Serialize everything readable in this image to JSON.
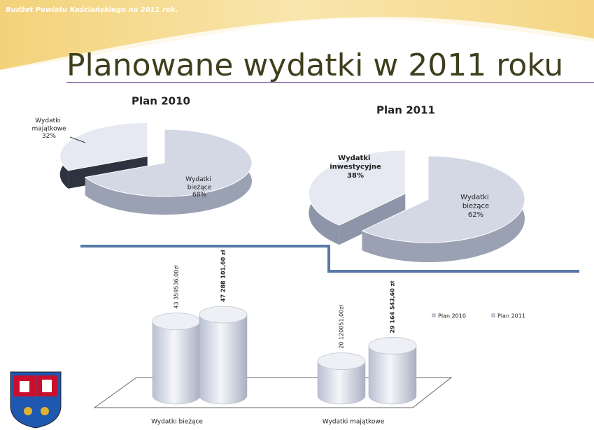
{
  "header": {
    "text": "Budżet Powiatu Kościańskiego na 2011 rok.",
    "title": "Planowane wydatki w 2011 roku"
  },
  "chart_data": [
    {
      "type": "pie",
      "title": "Plan 2010",
      "categories": [
        "Wydatki majątkowe",
        "Wydatki bieżące"
      ],
      "values": [
        32,
        68
      ],
      "value_labels": [
        "32%",
        "68%"
      ],
      "colors": [
        "#e6e9f1",
        "#d3d8e4"
      ],
      "side_colors": [
        "#2e3340",
        "#9aa1b3"
      ]
    },
    {
      "type": "pie",
      "title": "Plan 2011",
      "categories": [
        "Wydatki inwestycyjne",
        "Wydatki bieżące"
      ],
      "values": [
        38,
        62
      ],
      "value_labels": [
        "38%",
        "62%"
      ],
      "colors": [
        "#e6e9f1",
        "#d3d8e4"
      ],
      "side_colors": [
        "#8e95a8",
        "#9aa1b3"
      ]
    },
    {
      "type": "bar",
      "categories": [
        "Wydatki bieżące",
        "Wydatki majątkowe"
      ],
      "series": [
        {
          "name": "Plan 2010",
          "color": "#dde1ea",
          "values": [
            43359536,
            20120051
          ],
          "value_labels": [
            "43 359536,00zł",
            "20 120051,00zł"
          ]
        },
        {
          "name": "Plan 2011",
          "color": "#dde1ea",
          "values": [
            47288101.6,
            29164543.6
          ],
          "value_labels": [
            "47 288 101,60 zł",
            "29 164 543,60 zł"
          ]
        }
      ]
    }
  ]
}
